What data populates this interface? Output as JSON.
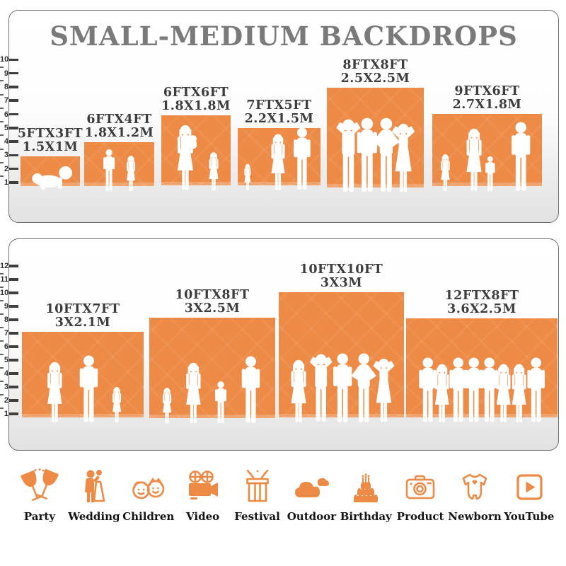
{
  "title": "SMALL-MEDIUM BACKDROPS",
  "accent_color": "#ED8A45",
  "panels": [
    {
      "name": "small-medium-backdrops",
      "ruler_numbers": [
        1,
        2,
        3,
        4,
        5,
        6,
        7,
        8,
        9,
        10
      ],
      "backdrops": [
        {
          "size_ft": "5FTX3FT",
          "size_m": "1.5X1M",
          "figures": [
            "baby"
          ]
        },
        {
          "size_ft": "6FTX4FT",
          "size_m": "1.8X1.2M",
          "figures": [
            "boy",
            "girl"
          ]
        },
        {
          "size_ft": "6FTX6FT",
          "size_m": "1.8X1.8M",
          "figures": [
            "woman-carry",
            "girl"
          ]
        },
        {
          "size_ft": "7FTX5FT",
          "size_m": "2.2X1.5M",
          "figures": [
            "toddler",
            "woman",
            "man"
          ]
        },
        {
          "size_ft": "8FTX8FT",
          "size_m": "2.5X2.5M",
          "figures": [
            "man-up",
            "man",
            "man-hips",
            "woman-up"
          ]
        },
        {
          "size_ft": "9FTX6FT",
          "size_m": "2.7X1.8M",
          "figures": [
            "girl",
            "woman",
            "child",
            "man"
          ]
        }
      ]
    },
    {
      "name": "large-backdrops",
      "ruler_numbers": [
        1,
        2,
        3,
        4,
        5,
        6,
        7,
        8,
        9,
        10,
        11,
        12
      ],
      "backdrops": [
        {
          "size_ft": "10FTX7FT",
          "size_m": "3X2.1M",
          "figures": [
            "woman",
            "man",
            "girl"
          ]
        },
        {
          "size_ft": "10FTX8FT",
          "size_m": "3X2.5M",
          "figures": [
            "girl",
            "woman",
            "boy",
            "man"
          ]
        },
        {
          "size_ft": "10FTX10FT",
          "size_m": "3X3M",
          "figures": [
            "woman",
            "man-up",
            "man",
            "man-hips",
            "woman-up"
          ]
        },
        {
          "size_ft": "12FTX8FT",
          "size_m": "3.6X2.5M",
          "figures": [
            "man",
            "woman",
            "man",
            "man",
            "man",
            "woman",
            "woman",
            "man"
          ]
        }
      ]
    }
  ],
  "categories": [
    {
      "label": "Party",
      "icon": "party-icon"
    },
    {
      "label": "Wedding",
      "icon": "wedding-icon"
    },
    {
      "label": "Children",
      "icon": "children-icon"
    },
    {
      "label": "Video",
      "icon": "video-icon"
    },
    {
      "label": "Festival",
      "icon": "festival-icon"
    },
    {
      "label": "Outdoor",
      "icon": "outdoor-icon"
    },
    {
      "label": "Birthday",
      "icon": "birthday-icon"
    },
    {
      "label": "Product",
      "icon": "product-icon"
    },
    {
      "label": "Newborn",
      "icon": "newborn-icon"
    },
    {
      "label": "YouTube",
      "icon": "youtube-icon"
    }
  ]
}
